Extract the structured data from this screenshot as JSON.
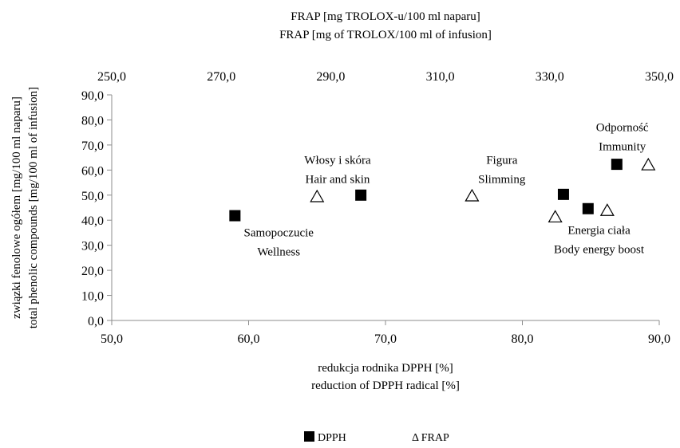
{
  "chart_data": {
    "type": "scatter",
    "title": "",
    "xlabel": [
      "redukcja rodnika DPPH [%]",
      "reduction of DPPH radical [%]"
    ],
    "x2label": [
      "FRAP [mg TROLOX-u/100 ml naparu]",
      "FRAP [mg of TROLOX/100 ml of infusion]"
    ],
    "ylabel": [
      "związki fenolowe ogółem [mg/100 ml naparu]",
      "total phenolic compounds [mg/100 ml of infusion]"
    ],
    "xlim": [
      50,
      90
    ],
    "x2lim": [
      250,
      350
    ],
    "ylim": [
      0,
      90
    ],
    "x_ticks": [
      "50,0",
      "60,0",
      "70,0",
      "80,0",
      "90,0"
    ],
    "x2_ticks": [
      "250,0",
      "270,0",
      "290,0",
      "310,0",
      "330,0",
      "350,0"
    ],
    "y_ticks": [
      "0,0",
      "10,0",
      "20,0",
      "30,0",
      "40,0",
      "50,0",
      "60,0",
      "70,0",
      "80,0",
      "90,0"
    ],
    "grid": false,
    "legend_position": "bottom",
    "series": [
      {
        "name": "DPPH",
        "axis": "bottom",
        "marker": "filled-square",
        "color": "#000000",
        "points": [
          {
            "x": 59.0,
            "y": 41.8
          },
          {
            "x": 68.2,
            "y": 50.0
          },
          {
            "x": 83.0,
            "y": 50.3
          },
          {
            "x": 84.8,
            "y": 44.6
          },
          {
            "x": 86.9,
            "y": 62.3
          }
        ]
      },
      {
        "name": "Δ FRAP",
        "axis": "top",
        "marker": "open-triangle",
        "color": "#000000",
        "points": [
          {
            "x": 287.5,
            "y": 49.3
          },
          {
            "x": 315.8,
            "y": 49.6
          },
          {
            "x": 331.0,
            "y": 41.2
          },
          {
            "x": 340.5,
            "y": 43.8
          },
          {
            "x": 348.0,
            "y": 62.0
          }
        ]
      }
    ],
    "annotations": [
      {
        "lines": [
          "Samopoczucie",
          "Wellness"
        ],
        "x": 62.2,
        "y": 33.5
      },
      {
        "lines": [
          "Włosy i skóra",
          "Hair and skin"
        ],
        "x": 66.5,
        "y": 62.5
      },
      {
        "lines": [
          "Figura",
          "Slimming"
        ],
        "x": 78.5,
        "y": 62.5
      },
      {
        "lines": [
          "Odporność",
          "Immunity"
        ],
        "x": 87.3,
        "y": 75.5
      },
      {
        "lines": [
          "Energia ciała",
          "Body energy boost"
        ],
        "x": 85.6,
        "y": 34.5
      }
    ]
  }
}
